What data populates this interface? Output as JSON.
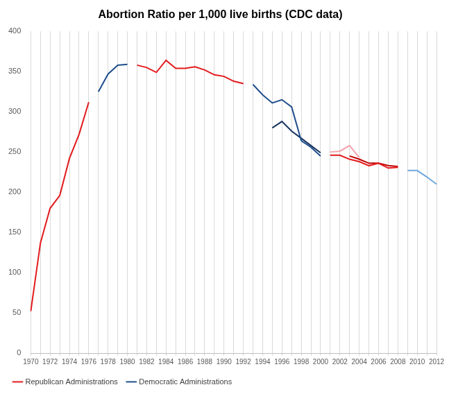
{
  "chart_data": {
    "type": "line",
    "title": "Abortion Ratio per 1,000 live births (CDC data)",
    "categories": [
      1970,
      null,
      1972,
      null,
      1974,
      null,
      1976,
      null,
      1978,
      null,
      1980,
      null,
      1982,
      null,
      1984,
      null,
      1986,
      null,
      1988,
      null,
      1990,
      null,
      1992,
      null,
      1994,
      null,
      1996,
      null,
      1998,
      null,
      2000,
      null,
      2002,
      null,
      2004,
      null,
      2006,
      null,
      2008,
      null,
      2010,
      null,
      2012
    ],
    "ylim": [
      0,
      400
    ],
    "yticks": [
      0,
      50,
      100,
      150,
      200,
      250,
      300,
      350,
      400
    ],
    "grid": "x",
    "legend": "bottom",
    "series": [
      {
        "name": "Republican Administrations",
        "color": "#e31a1c",
        "values": [
          52,
          137,
          180,
          196,
          242,
          272,
          312,
          null,
          null,
          null,
          null,
          null,
          null,
          null,
          null,
          null,
          null,
          null,
          null,
          null,
          null,
          null,
          null,
          null,
          null,
          null,
          null,
          null,
          null,
          null,
          null,
          null,
          null,
          null,
          null,
          null,
          null,
          null,
          null,
          null,
          null,
          null,
          null
        ]
      },
      {
        "name": "Democratic Administrations",
        "color": "#1f4e8c",
        "values": [
          null,
          null,
          null,
          null,
          null,
          null,
          null,
          325,
          347,
          358,
          359,
          null,
          null,
          null,
          null,
          null,
          null,
          null,
          null,
          null,
          null,
          null,
          null,
          null,
          null,
          null,
          null,
          null,
          null,
          null,
          null,
          null,
          null,
          null,
          null,
          null,
          null,
          null,
          null,
          null,
          null,
          null,
          null
        ]
      },
      {
        "name": "Republican Administrations",
        "color": "#e31a1c",
        "values": [
          null,
          null,
          null,
          null,
          null,
          null,
          null,
          null,
          null,
          null,
          null,
          358,
          355,
          349,
          364,
          354,
          354,
          356,
          352,
          346,
          344,
          338,
          335,
          null,
          null,
          null,
          null,
          null,
          null,
          null,
          null,
          null,
          null,
          null,
          null,
          null,
          null,
          null,
          null,
          null,
          null,
          null,
          null
        ]
      },
      {
        "name": "Democratic Administrations",
        "color": "#1f4e8c",
        "values": [
          null,
          null,
          null,
          null,
          null,
          null,
          null,
          null,
          null,
          null,
          null,
          null,
          null,
          null,
          null,
          null,
          null,
          null,
          null,
          null,
          null,
          null,
          null,
          334,
          321,
          311,
          315,
          306,
          264,
          256,
          245,
          null,
          null,
          null,
          null,
          null,
          null,
          null,
          null,
          null,
          null,
          null,
          null
        ]
      },
      {
        "name": "Democratic Administrations",
        "color": "#16325e",
        "values": [
          null,
          null,
          null,
          null,
          null,
          null,
          null,
          null,
          null,
          null,
          null,
          null,
          null,
          null,
          null,
          null,
          null,
          null,
          null,
          null,
          null,
          null,
          null,
          null,
          null,
          280,
          288,
          276,
          267,
          258,
          249,
          null,
          null,
          null,
          null,
          null,
          null,
          null,
          null,
          null,
          null,
          null,
          null
        ]
      },
      {
        "name": "Republican Administrations",
        "color": "#f4a3ab",
        "values": [
          null,
          null,
          null,
          null,
          null,
          null,
          null,
          null,
          null,
          null,
          null,
          null,
          null,
          null,
          null,
          null,
          null,
          null,
          null,
          null,
          null,
          null,
          null,
          null,
          null,
          null,
          null,
          null,
          null,
          null,
          null,
          250,
          251,
          258,
          243,
          null,
          null,
          null,
          null,
          null,
          null,
          null,
          null
        ]
      },
      {
        "name": "Republican Administrations",
        "color": "#e31a1c",
        "values": [
          null,
          null,
          null,
          null,
          null,
          null,
          null,
          null,
          null,
          null,
          null,
          null,
          null,
          null,
          null,
          null,
          null,
          null,
          null,
          null,
          null,
          null,
          null,
          null,
          null,
          null,
          null,
          null,
          null,
          null,
          null,
          246,
          246,
          241,
          238,
          233,
          236,
          230,
          231,
          null,
          null,
          null,
          null
        ]
      },
      {
        "name": "Republican Administrations",
        "color": "#c00000",
        "values": [
          null,
          null,
          null,
          null,
          null,
          null,
          null,
          null,
          null,
          null,
          null,
          null,
          null,
          null,
          null,
          null,
          null,
          null,
          null,
          null,
          null,
          null,
          null,
          null,
          null,
          null,
          null,
          null,
          null,
          null,
          null,
          null,
          null,
          245,
          241,
          236,
          236,
          233,
          232,
          null,
          null,
          null,
          null
        ]
      },
      {
        "name": "Democratic Administrations",
        "color": "#6fa8dc",
        "values": [
          null,
          null,
          null,
          null,
          null,
          null,
          null,
          null,
          null,
          null,
          null,
          null,
          null,
          null,
          null,
          null,
          null,
          null,
          null,
          null,
          null,
          null,
          null,
          null,
          null,
          null,
          null,
          null,
          null,
          null,
          null,
          null,
          null,
          null,
          null,
          null,
          null,
          null,
          null,
          227,
          227,
          219,
          210
        ]
      }
    ]
  }
}
